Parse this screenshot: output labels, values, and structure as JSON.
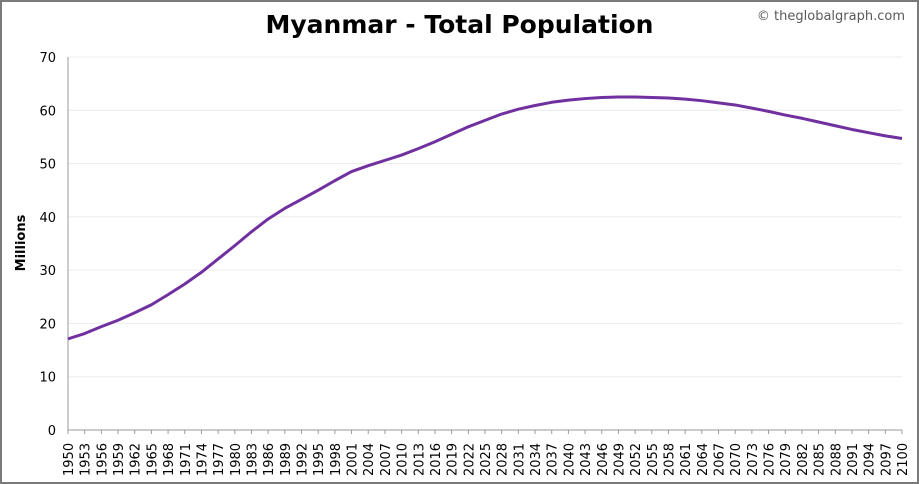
{
  "credit": "© theglobalgraph.com",
  "chart_data": {
    "type": "line",
    "title": "Myanmar - Total Population",
    "xlabel": "",
    "ylabel": "Millions",
    "xlim": [
      1950,
      2100
    ],
    "ylim": [
      0,
      70
    ],
    "yticks": [
      0,
      10,
      20,
      30,
      40,
      50,
      60,
      70
    ],
    "xticks": [
      1950,
      1953,
      1956,
      1959,
      1962,
      1965,
      1968,
      1971,
      1974,
      1977,
      1980,
      1983,
      1986,
      1989,
      1992,
      1995,
      1998,
      2001,
      2004,
      2007,
      2010,
      2013,
      2016,
      2019,
      2022,
      2025,
      2028,
      2031,
      2034,
      2037,
      2040,
      2043,
      2046,
      2049,
      2052,
      2055,
      2058,
      2061,
      2064,
      2067,
      2070,
      2073,
      2076,
      2079,
      2082,
      2085,
      2088,
      2091,
      2094,
      2097,
      2100
    ],
    "grid": true,
    "line_color": "#7030a0",
    "series": [
      {
        "x": [
          1950,
          1953,
          1956,
          1959,
          1962,
          1965,
          1968,
          1971,
          1974,
          1977,
          1980,
          1983,
          1986,
          1989,
          1992,
          1995,
          1998,
          2001,
          2004,
          2007,
          2010,
          2013,
          2016,
          2019,
          2022,
          2025,
          2028,
          2031,
          2034,
          2037,
          2040,
          2043,
          2046,
          2049,
          2052,
          2055,
          2058,
          2061,
          2064,
          2067,
          2070,
          2073,
          2076,
          2079,
          2082,
          2085,
          2088,
          2091,
          2094,
          2097,
          2100
        ],
        "values": [
          17.1,
          18.1,
          19.4,
          20.6,
          22.0,
          23.5,
          25.4,
          27.4,
          29.6,
          32.1,
          34.6,
          37.2,
          39.6,
          41.6,
          43.3,
          45.0,
          46.8,
          48.5,
          49.6,
          50.6,
          51.6,
          52.8,
          54.1,
          55.5,
          56.9,
          58.1,
          59.3,
          60.2,
          60.9,
          61.5,
          61.9,
          62.2,
          62.4,
          62.5,
          62.5,
          62.4,
          62.3,
          62.1,
          61.8,
          61.4,
          61.0,
          60.4,
          59.8,
          59.1,
          58.5,
          57.8,
          57.1,
          56.4,
          55.8,
          55.2,
          54.7
        ]
      }
    ]
  }
}
